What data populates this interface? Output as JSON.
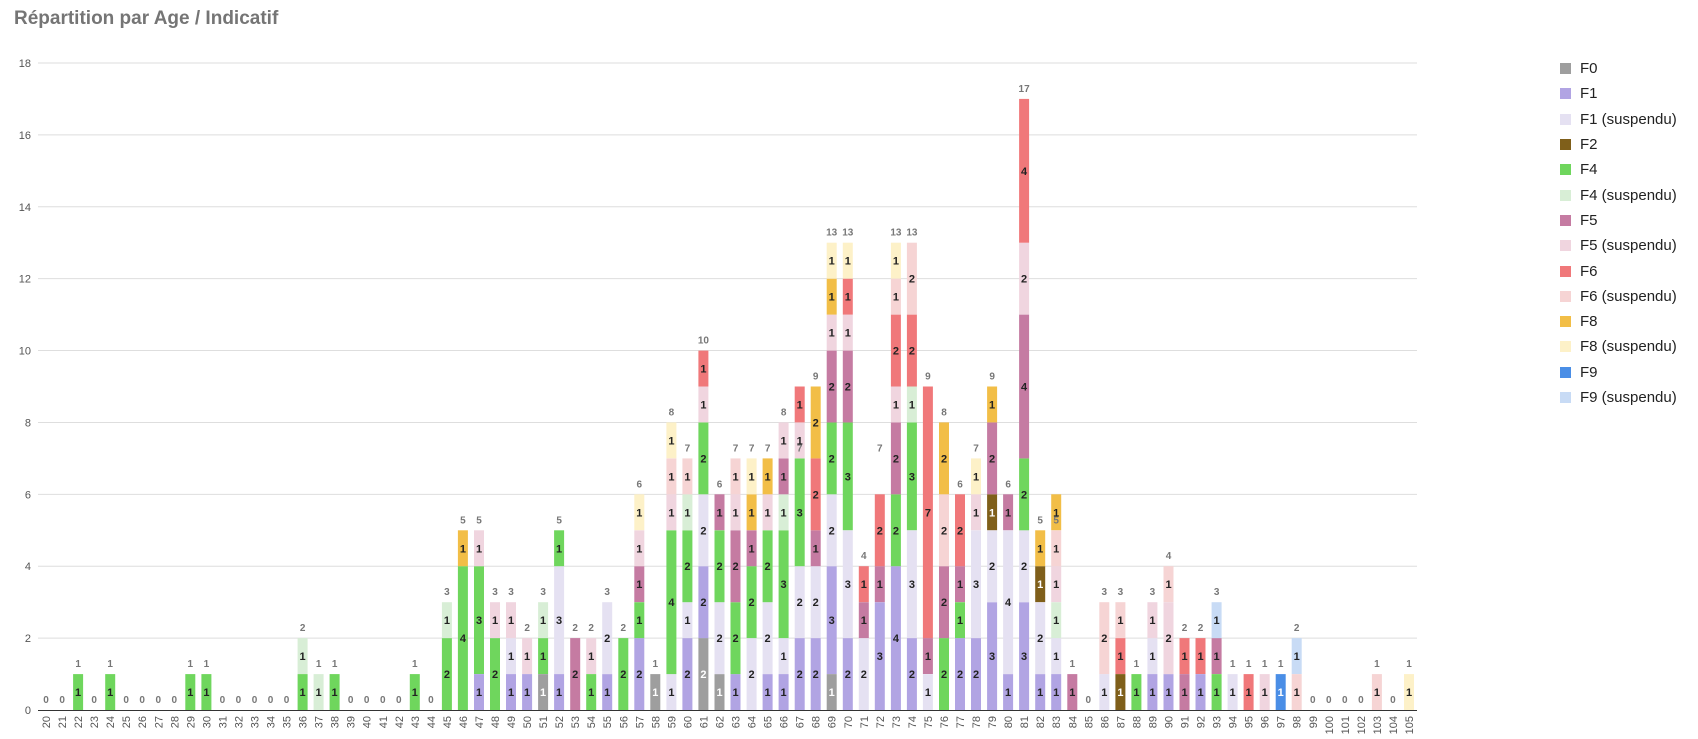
{
  "chart_data": {
    "type": "bar",
    "stacked": true,
    "title": "Répartition par Age / Indicatif",
    "xlabel": "",
    "ylabel": "",
    "ylim": [
      0,
      18
    ],
    "yticks": [
      "0",
      "2",
      "4",
      "6",
      "8",
      "10",
      "12",
      "14",
      "16",
      "18"
    ],
    "grid": true,
    "legend_position": "right",
    "categories": [
      "20",
      "21",
      "22",
      "23",
      "24",
      "25",
      "26",
      "27",
      "28",
      "29",
      "30",
      "31",
      "32",
      "33",
      "34",
      "35",
      "36",
      "37",
      "38",
      "39",
      "40",
      "41",
      "42",
      "43",
      "44",
      "45",
      "46",
      "47",
      "48",
      "49",
      "50",
      "51",
      "52",
      "53",
      "54",
      "55",
      "56",
      "57",
      "58",
      "59",
      "60",
      "61",
      "62",
      "63",
      "64",
      "65",
      "66",
      "67",
      "68",
      "69",
      "70",
      "71",
      "72",
      "73",
      "74",
      "75",
      "76",
      "77",
      "78",
      "79",
      "80",
      "81",
      "82",
      "83",
      "84",
      "85",
      "86",
      "87",
      "88",
      "89",
      "90",
      "91",
      "92",
      "93",
      "94",
      "95",
      "96",
      "97",
      "98",
      "99",
      "100",
      "101",
      "102",
      "103",
      "104",
      "105"
    ],
    "totals": [
      0,
      0,
      1,
      0,
      1,
      0,
      0,
      0,
      0,
      1,
      1,
      0,
      0,
      0,
      0,
      0,
      2,
      1,
      1,
      0,
      0,
      0,
      0,
      1,
      0,
      3,
      5,
      5,
      3,
      3,
      2,
      3,
      5,
      2,
      2,
      3,
      2,
      6,
      1,
      8,
      7,
      10,
      6,
      7,
      7,
      7,
      8,
      7,
      9,
      13,
      13,
      4,
      7,
      13,
      13,
      9,
      8,
      6,
      7,
      9,
      6,
      17,
      5,
      5,
      1,
      0,
      3,
      3,
      1,
      3,
      4,
      2,
      2,
      3,
      1,
      1,
      1,
      1,
      2,
      0,
      0,
      0,
      0,
      1,
      0,
      1
    ],
    "series": [
      {
        "name": "F0",
        "color": "#9e9e9e",
        "values": [
          0,
          0,
          0,
          0,
          0,
          0,
          0,
          0,
          0,
          0,
          0,
          0,
          0,
          0,
          0,
          0,
          0,
          0,
          0,
          0,
          0,
          0,
          0,
          0,
          0,
          0,
          0,
          0,
          0,
          0,
          0,
          1,
          0,
          0,
          0,
          0,
          0,
          0,
          1,
          0,
          0,
          2,
          1,
          0,
          0,
          0,
          0,
          0,
          0,
          1,
          0,
          0,
          0,
          0,
          0,
          0,
          0,
          0,
          0,
          0,
          0,
          0,
          0,
          0,
          0,
          0,
          0,
          0,
          0,
          0,
          0,
          0,
          0,
          0,
          0,
          0,
          0,
          0,
          0,
          0,
          0,
          0,
          0,
          0,
          0,
          0
        ]
      },
      {
        "name": "F1",
        "color": "#b1a4e3",
        "values": [
          0,
          0,
          0,
          0,
          0,
          0,
          0,
          0,
          0,
          0,
          0,
          0,
          0,
          0,
          0,
          0,
          0,
          0,
          0,
          0,
          0,
          0,
          0,
          0,
          0,
          0,
          0,
          1,
          0,
          1,
          1,
          0,
          1,
          0,
          0,
          1,
          0,
          2,
          0,
          0,
          2,
          2,
          0,
          1,
          0,
          1,
          1,
          2,
          2,
          3,
          2,
          0,
          3,
          4,
          2,
          0,
          0,
          2,
          2,
          3,
          1,
          3,
          1,
          1,
          0,
          0,
          0,
          0,
          0,
          1,
          1,
          0,
          1,
          0,
          0,
          0,
          0,
          0,
          0,
          0,
          0,
          0,
          0,
          0,
          0,
          0
        ]
      },
      {
        "name": "F1 (suspendu)",
        "color": "#e5e1f2",
        "values": [
          0,
          0,
          0,
          0,
          0,
          0,
          0,
          0,
          0,
          0,
          0,
          0,
          0,
          0,
          0,
          0,
          0,
          0,
          0,
          0,
          0,
          0,
          0,
          0,
          0,
          0,
          0,
          0,
          0,
          1,
          0,
          0,
          3,
          0,
          0,
          2,
          0,
          0,
          0,
          1,
          1,
          2,
          2,
          0,
          2,
          2,
          1,
          2,
          2,
          2,
          3,
          2,
          0,
          0,
          3,
          1,
          0,
          0,
          3,
          2,
          4,
          2,
          2,
          1,
          0,
          0,
          1,
          0,
          0,
          1,
          0,
          0,
          0,
          0,
          1,
          0,
          0,
          0,
          0,
          0,
          0,
          0,
          0,
          0,
          0,
          0
        ]
      },
      {
        "name": "F2",
        "color": "#7f5f1a",
        "values": [
          0,
          0,
          0,
          0,
          0,
          0,
          0,
          0,
          0,
          0,
          0,
          0,
          0,
          0,
          0,
          0,
          0,
          0,
          0,
          0,
          0,
          0,
          0,
          0,
          0,
          0,
          0,
          0,
          0,
          0,
          0,
          0,
          0,
          0,
          0,
          0,
          0,
          0,
          0,
          0,
          0,
          0,
          0,
          0,
          0,
          0,
          0,
          0,
          0,
          0,
          0,
          0,
          0,
          0,
          0,
          0,
          0,
          0,
          0,
          1,
          0,
          0,
          1,
          0,
          0,
          0,
          0,
          1,
          0,
          0,
          0,
          0,
          0,
          0,
          0,
          0,
          0,
          0,
          0,
          0,
          0,
          0,
          0,
          0,
          0,
          0
        ]
      },
      {
        "name": "F4",
        "color": "#6fd65d",
        "values": [
          0,
          0,
          1,
          0,
          1,
          0,
          0,
          0,
          0,
          1,
          1,
          0,
          0,
          0,
          0,
          0,
          1,
          0,
          1,
          0,
          0,
          0,
          0,
          1,
          0,
          2,
          4,
          3,
          2,
          0,
          0,
          1,
          1,
          0,
          1,
          0,
          2,
          1,
          0,
          4,
          2,
          2,
          2,
          2,
          2,
          2,
          3,
          3,
          0,
          2,
          3,
          0,
          0,
          2,
          3,
          0,
          2,
          1,
          0,
          0,
          0,
          2,
          0,
          0,
          0,
          0,
          0,
          0,
          1,
          0,
          0,
          0,
          0,
          1,
          0,
          0,
          0,
          0,
          0,
          0,
          0,
          0,
          0,
          0,
          0,
          0
        ]
      },
      {
        "name": "F4 (suspendu)",
        "color": "#d8eed6",
        "values": [
          0,
          0,
          0,
          0,
          0,
          0,
          0,
          0,
          0,
          0,
          0,
          0,
          0,
          0,
          0,
          0,
          1,
          1,
          0,
          0,
          0,
          0,
          0,
          0,
          0,
          1,
          0,
          0,
          0,
          0,
          0,
          1,
          0,
          0,
          0,
          0,
          0,
          0,
          0,
          0,
          1,
          0,
          0,
          0,
          0,
          0,
          1,
          0,
          0,
          0,
          0,
          0,
          0,
          0,
          1,
          0,
          0,
          0,
          0,
          0,
          0,
          0,
          0,
          1,
          0,
          0,
          0,
          0,
          0,
          0,
          0,
          0,
          0,
          0,
          0,
          0,
          0,
          0,
          0,
          0,
          0,
          0,
          0,
          0,
          0,
          0
        ]
      },
      {
        "name": "F5",
        "color": "#c57ba2",
        "values": [
          0,
          0,
          0,
          0,
          0,
          0,
          0,
          0,
          0,
          0,
          0,
          0,
          0,
          0,
          0,
          0,
          0,
          0,
          0,
          0,
          0,
          0,
          0,
          0,
          0,
          0,
          0,
          0,
          0,
          0,
          0,
          0,
          0,
          2,
          0,
          0,
          0,
          1,
          0,
          0,
          0,
          0,
          1,
          2,
          1,
          0,
          1,
          0,
          1,
          2,
          2,
          1,
          1,
          2,
          0,
          1,
          2,
          1,
          0,
          2,
          1,
          4,
          0,
          0,
          1,
          0,
          0,
          0,
          0,
          0,
          0,
          1,
          0,
          1,
          0,
          0,
          0,
          0,
          0,
          0,
          0,
          0,
          0,
          0,
          0,
          0
        ]
      },
      {
        "name": "F5 (suspendu)",
        "color": "#f0d5df",
        "values": [
          0,
          0,
          0,
          0,
          0,
          0,
          0,
          0,
          0,
          0,
          0,
          0,
          0,
          0,
          0,
          0,
          0,
          0,
          0,
          0,
          0,
          0,
          0,
          0,
          0,
          0,
          0,
          1,
          1,
          1,
          1,
          0,
          0,
          0,
          1,
          0,
          0,
          1,
          0,
          1,
          0,
          1,
          0,
          1,
          0,
          1,
          1,
          1,
          0,
          1,
          1,
          0,
          0,
          1,
          0,
          0,
          0,
          0,
          1,
          0,
          0,
          2,
          0,
          1,
          0,
          0,
          0,
          0,
          0,
          1,
          2,
          0,
          0,
          0,
          0,
          0,
          1,
          0,
          0,
          0,
          0,
          0,
          0,
          0,
          0,
          0
        ]
      },
      {
        "name": "F6",
        "color": "#f0787a",
        "values": [
          0,
          0,
          0,
          0,
          0,
          0,
          0,
          0,
          0,
          0,
          0,
          0,
          0,
          0,
          0,
          0,
          0,
          0,
          0,
          0,
          0,
          0,
          0,
          0,
          0,
          0,
          0,
          0,
          0,
          0,
          0,
          0,
          0,
          0,
          0,
          0,
          0,
          0,
          0,
          0,
          0,
          1,
          0,
          0,
          0,
          0,
          0,
          1,
          2,
          0,
          1,
          1,
          2,
          2,
          2,
          7,
          0,
          2,
          0,
          0,
          0,
          4,
          0,
          0,
          0,
          0,
          0,
          1,
          0,
          0,
          0,
          1,
          1,
          0,
          0,
          1,
          0,
          0,
          0,
          0,
          0,
          0,
          0,
          0,
          0,
          0
        ]
      },
      {
        "name": "F6 (suspendu)",
        "color": "#f6d4d4",
        "values": [
          0,
          0,
          0,
          0,
          0,
          0,
          0,
          0,
          0,
          0,
          0,
          0,
          0,
          0,
          0,
          0,
          0,
          0,
          0,
          0,
          0,
          0,
          0,
          0,
          0,
          0,
          0,
          0,
          0,
          0,
          0,
          0,
          0,
          0,
          0,
          0,
          0,
          0,
          0,
          1,
          1,
          0,
          0,
          1,
          0,
          0,
          0,
          0,
          0,
          0,
          0,
          0,
          0,
          1,
          2,
          0,
          2,
          0,
          0,
          0,
          0,
          0,
          0,
          1,
          0,
          0,
          2,
          1,
          0,
          0,
          1,
          0,
          0,
          0,
          0,
          0,
          0,
          0,
          1,
          0,
          0,
          0,
          0,
          1,
          0,
          0
        ]
      },
      {
        "name": "F8",
        "color": "#f2be47",
        "values": [
          0,
          0,
          0,
          0,
          0,
          0,
          0,
          0,
          0,
          0,
          0,
          0,
          0,
          0,
          0,
          0,
          0,
          0,
          0,
          0,
          0,
          0,
          0,
          0,
          0,
          0,
          1,
          0,
          0,
          0,
          0,
          0,
          0,
          0,
          0,
          0,
          0,
          0,
          0,
          0,
          0,
          0,
          0,
          0,
          1,
          1,
          0,
          0,
          2,
          1,
          0,
          0,
          0,
          0,
          0,
          0,
          2,
          0,
          0,
          1,
          0,
          0,
          1,
          1,
          0,
          0,
          0,
          0,
          0,
          0,
          0,
          0,
          0,
          0,
          0,
          0,
          0,
          0,
          0,
          0,
          0,
          0,
          0,
          0,
          0,
          0
        ]
      },
      {
        "name": "F8 (suspendu)",
        "color": "#fdf1c8",
        "values": [
          0,
          0,
          0,
          0,
          0,
          0,
          0,
          0,
          0,
          0,
          0,
          0,
          0,
          0,
          0,
          0,
          0,
          0,
          0,
          0,
          0,
          0,
          0,
          0,
          0,
          0,
          0,
          0,
          0,
          0,
          0,
          0,
          0,
          0,
          0,
          0,
          0,
          1,
          0,
          1,
          0,
          0,
          0,
          0,
          1,
          0,
          0,
          0,
          0,
          1,
          1,
          0,
          0,
          1,
          0,
          0,
          0,
          0,
          1,
          0,
          0,
          0,
          0,
          0,
          0,
          0,
          0,
          0,
          0,
          0,
          0,
          0,
          0,
          0,
          0,
          0,
          0,
          0,
          0,
          0,
          0,
          0,
          0,
          0,
          0,
          1
        ]
      },
      {
        "name": "F9",
        "color": "#4a8ee6",
        "values": [
          0,
          0,
          0,
          0,
          0,
          0,
          0,
          0,
          0,
          0,
          0,
          0,
          0,
          0,
          0,
          0,
          0,
          0,
          0,
          0,
          0,
          0,
          0,
          0,
          0,
          0,
          0,
          0,
          0,
          0,
          0,
          0,
          0,
          0,
          0,
          0,
          0,
          0,
          0,
          0,
          0,
          0,
          0,
          0,
          0,
          0,
          0,
          0,
          0,
          0,
          0,
          0,
          0,
          0,
          0,
          0,
          0,
          0,
          0,
          0,
          0,
          0,
          0,
          0,
          0,
          0,
          0,
          0,
          0,
          0,
          0,
          0,
          0,
          0,
          0,
          0,
          0,
          1,
          0,
          0,
          0,
          0,
          0,
          0,
          0,
          0
        ]
      },
      {
        "name": "F9 (suspendu)",
        "color": "#c8dbf5",
        "values": [
          0,
          0,
          0,
          0,
          0,
          0,
          0,
          0,
          0,
          0,
          0,
          0,
          0,
          0,
          0,
          0,
          0,
          0,
          0,
          0,
          0,
          0,
          0,
          0,
          0,
          0,
          0,
          0,
          0,
          0,
          0,
          0,
          0,
          0,
          0,
          0,
          0,
          0,
          0,
          0,
          0,
          0,
          0,
          0,
          0,
          0,
          0,
          0,
          0,
          0,
          0,
          0,
          0,
          0,
          0,
          0,
          0,
          0,
          0,
          0,
          0,
          0,
          0,
          0,
          0,
          0,
          0,
          0,
          0,
          0,
          0,
          0,
          0,
          1,
          0,
          0,
          0,
          0,
          1,
          0,
          0,
          0,
          0,
          0,
          0,
          0
        ]
      }
    ]
  }
}
